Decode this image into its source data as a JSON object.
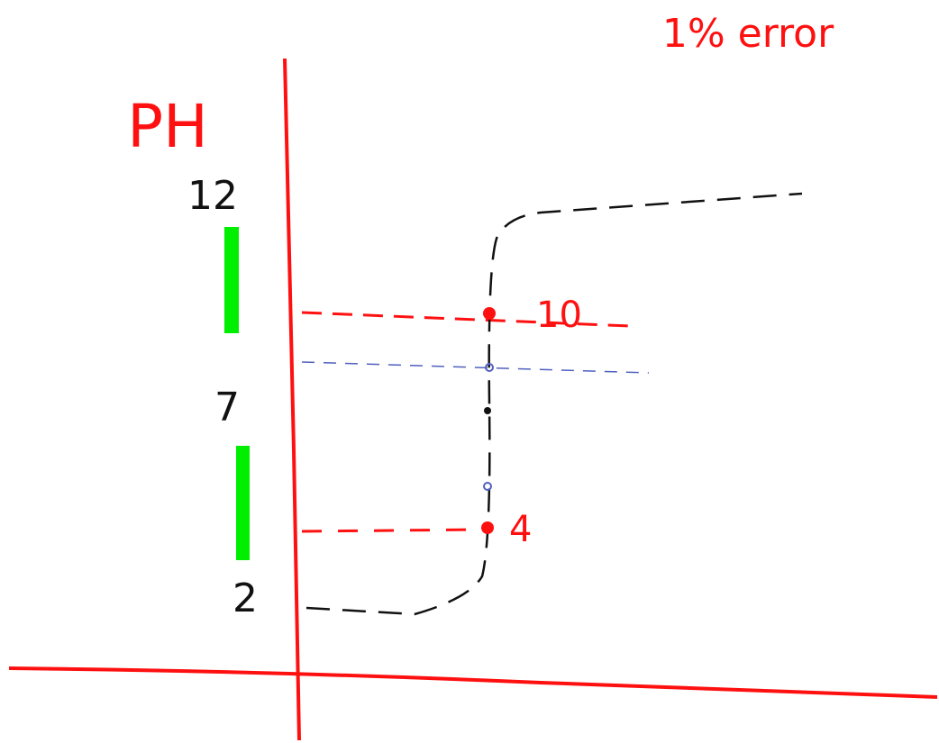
{
  "title": "1% error",
  "axis": {
    "label": "PH",
    "ticks": [
      "12",
      "7",
      "2"
    ]
  },
  "points": [
    {
      "label": "10"
    },
    {
      "label": "4"
    }
  ]
}
